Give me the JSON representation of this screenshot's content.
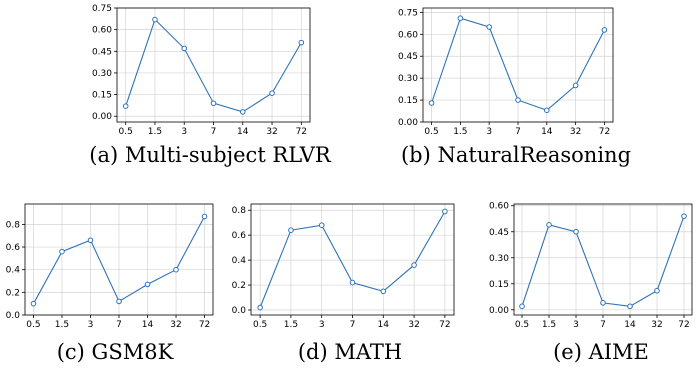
{
  "colors": {
    "series": "#2f73b7",
    "grid": "#d4d4d4",
    "point_fill": "#ffffff"
  },
  "chart_data": [
    {
      "type": "line",
      "caption": "(a) Multi-subject RLVR",
      "categories": [
        "0.5",
        "1.5",
        "3",
        "7",
        "14",
        "32",
        "72"
      ],
      "values": [
        0.07,
        0.67,
        0.47,
        0.09,
        0.03,
        0.16,
        0.51
      ],
      "ylim": [
        -0.04,
        0.75
      ],
      "yticks": [
        0.0,
        0.15,
        0.3,
        0.45,
        0.6,
        0.75
      ],
      "ytick_labels": [
        "0.00",
        "0.15",
        "0.30",
        "0.45",
        "0.60",
        "0.75"
      ],
      "grid": true
    },
    {
      "type": "line",
      "caption": "(b) NaturalReasoning",
      "categories": [
        "0.5",
        "1.5",
        "3",
        "7",
        "14",
        "32",
        "72"
      ],
      "values": [
        0.13,
        0.71,
        0.65,
        0.15,
        0.08,
        0.25,
        0.63
      ],
      "ylim": [
        0.0,
        0.78
      ],
      "yticks": [
        0.0,
        0.15,
        0.3,
        0.45,
        0.6,
        0.75
      ],
      "ytick_labels": [
        "0.00",
        "0.15",
        "0.30",
        "0.45",
        "0.60",
        "0.75"
      ],
      "grid": true
    },
    {
      "type": "line",
      "caption": "(c) GSM8K",
      "categories": [
        "0.5",
        "1.5",
        "3",
        "7",
        "14",
        "32",
        "72"
      ],
      "values": [
        0.1,
        0.56,
        0.66,
        0.12,
        0.27,
        0.4,
        0.87
      ],
      "ylim": [
        0.0,
        0.98
      ],
      "yticks": [
        0.0,
        0.2,
        0.4,
        0.6,
        0.8
      ],
      "ytick_labels": [
        "0.0",
        "0.2",
        "0.4",
        "0.6",
        "0.8"
      ],
      "grid": true
    },
    {
      "type": "line",
      "caption": "(d) MATH",
      "categories": [
        "0.5",
        "1.5",
        "3",
        "7",
        "14",
        "32",
        "72"
      ],
      "values": [
        0.02,
        0.64,
        0.68,
        0.22,
        0.15,
        0.36,
        0.79
      ],
      "ylim": [
        -0.04,
        0.85
      ],
      "yticks": [
        0.0,
        0.2,
        0.4,
        0.6,
        0.8
      ],
      "ytick_labels": [
        "0.0",
        "0.2",
        "0.4",
        "0.6",
        "0.8"
      ],
      "grid": true
    },
    {
      "type": "line",
      "caption": "(e) AIME",
      "categories": [
        "0.5",
        "1.5",
        "3",
        "7",
        "14",
        "32",
        "72"
      ],
      "values": [
        0.02,
        0.49,
        0.45,
        0.04,
        0.02,
        0.11,
        0.54
      ],
      "ylim": [
        -0.03,
        0.61
      ],
      "yticks": [
        0.0,
        0.15,
        0.3,
        0.45,
        0.6
      ],
      "ytick_labels": [
        "0.00",
        "0.15",
        "0.30",
        "0.45",
        "0.60"
      ],
      "grid": true
    }
  ]
}
